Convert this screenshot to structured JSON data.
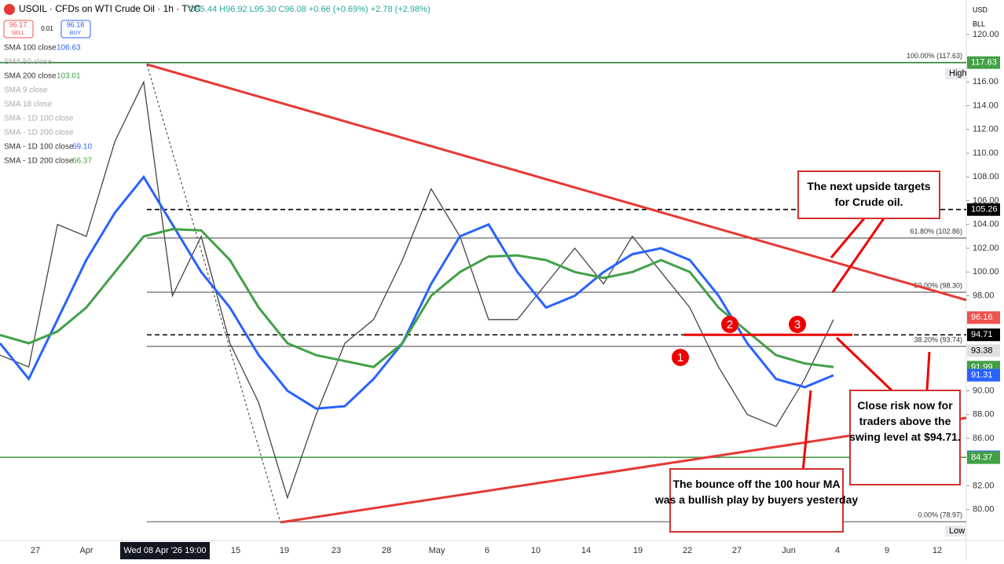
{
  "header": {
    "symbol": "USOIL · CFDs on WTI Crude Oil · 1h · TVC",
    "ohlc": "O95.44 H96.92 L95.30 C96.08 +0.66 (+0.69%) +2.78 (+2.98%)"
  },
  "trade": {
    "sell_price": "96.17",
    "sell": "SELL",
    "spread": "0.01",
    "buy_price": "96.18",
    "buy": "BUY"
  },
  "indicators": [
    {
      "name": "SMA 100 close",
      "value": "106.63",
      "color": "#2962ff"
    },
    {
      "name": "SMA 50 close",
      "value": "",
      "color": "#aaa"
    },
    {
      "name": "SMA 200 close",
      "value": "103.01",
      "color": "#43a047"
    },
    {
      "name": "SMA 9 close",
      "value": "",
      "color": "#aaa"
    },
    {
      "name": "SMA 18 close",
      "value": "",
      "color": "#aaa"
    },
    {
      "name": "SMA - 1D 100 close",
      "value": "",
      "color": "#aaa"
    },
    {
      "name": "SMA - 1D 200 close",
      "value": "",
      "color": "#aaa"
    },
    {
      "name": "SMA - 1D 100 close",
      "value": "69.10",
      "color": "#2962ff"
    },
    {
      "name": "SMA - 1D 200 close",
      "value": "66.37",
      "color": "#43a047"
    }
  ],
  "axis_units": {
    "currency": "USD",
    "unit": "BLL"
  },
  "chart_data": {
    "type": "line",
    "ylim": [
      77.4,
      122.9
    ],
    "yticks": [
      {
        "value": 80,
        "label": "80.00"
      },
      {
        "value": 82,
        "label": "82.00"
      },
      {
        "value": 86,
        "label": "86.00"
      },
      {
        "value": 88,
        "label": "88.00"
      },
      {
        "value": 90,
        "label": "90.00"
      },
      {
        "value": 98,
        "label": "98.00"
      },
      {
        "value": 100,
        "label": "100.00"
      },
      {
        "value": 102,
        "label": "102.00"
      },
      {
        "value": 104,
        "label": "104.00"
      },
      {
        "value": 106,
        "label": "106.00"
      },
      {
        "value": 108,
        "label": "108.00"
      },
      {
        "value": 110,
        "label": "110.00"
      },
      {
        "value": 112,
        "label": "112.00"
      },
      {
        "value": 114,
        "label": "114.00"
      },
      {
        "value": 116,
        "label": "116.00"
      },
      {
        "value": 120,
        "label": "120.00"
      }
    ],
    "xtick_labels": [
      "27",
      "Apr",
      "15",
      "19",
      "23",
      "28",
      "May",
      "6",
      "10",
      "14",
      "19",
      "22",
      "27",
      "Jun",
      "4",
      "9",
      "12"
    ],
    "crosshair_date": "Wed 08 Apr '26  19:00",
    "series": [
      {
        "name": "Price",
        "color": "#444444",
        "values": [
          93,
          92,
          104,
          103,
          111,
          116,
          98,
          103,
          94,
          89,
          81,
          88,
          94,
          96,
          101,
          107,
          103,
          96,
          96,
          99,
          102,
          99,
          103,
          100,
          97,
          92,
          88,
          87,
          91,
          96
        ]
      },
      {
        "name": "SMA 100",
        "color": "#2962ff",
        "values": [
          94,
          91,
          96,
          101,
          105,
          108,
          104,
          100,
          97,
          93,
          90,
          88.5,
          88.7,
          91,
          94,
          99,
          103,
          104,
          100,
          97,
          98,
          100,
          101.5,
          102,
          101,
          98,
          94,
          91,
          90.3,
          91.3
        ]
      },
      {
        "name": "SMA 200",
        "color": "#43a047",
        "values": [
          94.7,
          94,
          95,
          97,
          100,
          103,
          103.6,
          103.5,
          101,
          97,
          94,
          93,
          92.5,
          92,
          94,
          98,
          100,
          101.3,
          101.4,
          101,
          100,
          99.5,
          100,
          101,
          100,
          97,
          95,
          93,
          92.3,
          92
        ]
      }
    ],
    "levels": [
      {
        "value": 117.63,
        "color": "#2e7d32",
        "dash": false
      },
      {
        "value": 105.26,
        "color": "#000000",
        "dash": true
      },
      {
        "value": 102.86,
        "color": "#000000",
        "dash": false
      },
      {
        "value": 98.3,
        "color": "#000000",
        "dash": false
      },
      {
        "value": 94.71,
        "color": "#000000",
        "dash": true
      },
      {
        "value": 93.74,
        "color": "#888888",
        "dash": false
      },
      {
        "value": 84.4,
        "color": "#43a047",
        "dash": false
      },
      {
        "value": 78.97,
        "color": "#888888",
        "dash": false
      }
    ],
    "fib_labels": [
      {
        "value": 117.63,
        "label": "100.00% (117.63)"
      },
      {
        "value": 102.86,
        "label": "61.80% (102.86)"
      },
      {
        "value": 98.3,
        "label": "50.00% (98.30)"
      },
      {
        "value": 93.74,
        "label": "38.20% (93.74)"
      },
      {
        "value": 78.97,
        "label": "0.00% (78.97)"
      }
    ],
    "price_tags": [
      {
        "value": 117.63,
        "color": "#43a047"
      },
      {
        "value": 105.26,
        "color": "#000000"
      },
      {
        "value": 96.16,
        "color": "#ef5350"
      },
      {
        "value": 94.71,
        "color": "#000000"
      },
      {
        "value": 93.38,
        "color": "#e0e0e0"
      },
      {
        "value": 91.99,
        "color": "#43a047"
      },
      {
        "value": 91.31,
        "color": "#2962ff"
      },
      {
        "value": 84.44,
        "color": "#2962ff"
      },
      {
        "value": 84.37,
        "color": "#43a047"
      }
    ],
    "text_tags": [
      {
        "value": 116.7,
        "label": "High"
      },
      {
        "value": 78.2,
        "label": "Low"
      }
    ],
    "swing_level": 94.71,
    "markers": [
      "1",
      "2",
      "3"
    ],
    "annotations": [
      "The next upside targets for Crude oil.",
      "Close risk now for traders above the swing level at $94.71.",
      "The bounce off the 100 hour MA was a bullish play by buyers yesterday"
    ]
  }
}
